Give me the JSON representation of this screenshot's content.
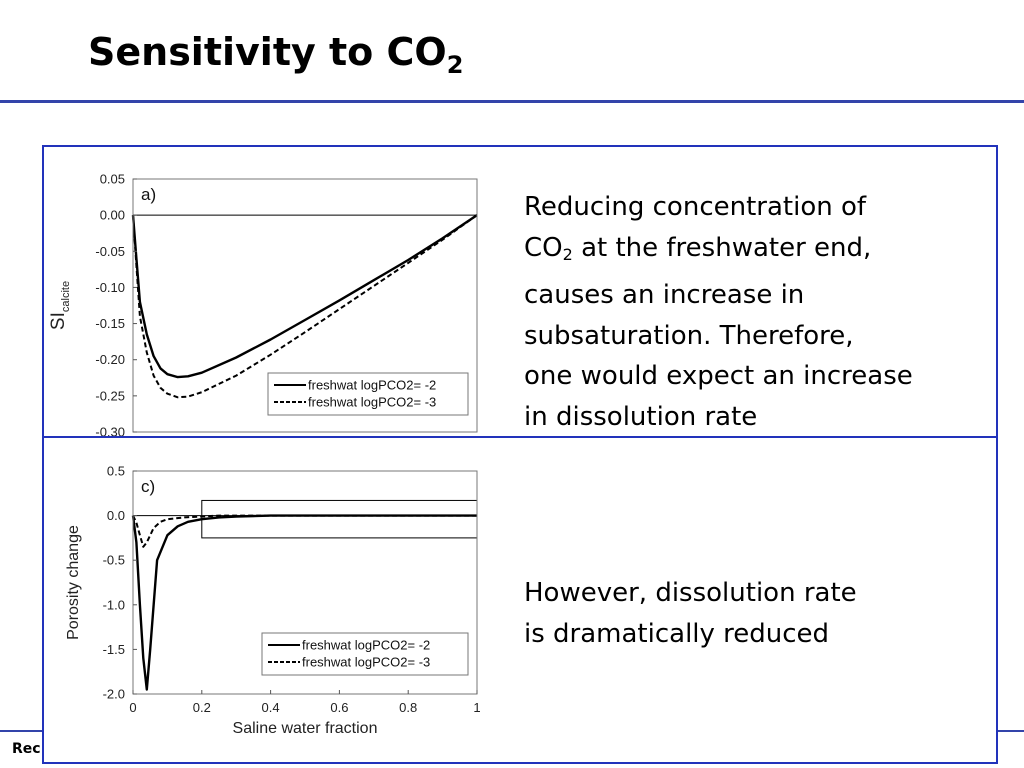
{
  "slide": {
    "title_main": "Sensitivity to CO",
    "title_sub": "2",
    "footer_fragment": "Rec"
  },
  "panel_top": {
    "text_line1": "Reducing concentration of",
    "text_co": "CO",
    "text_co_sub": "2",
    "text_line2_rest": " at the freshwater end,",
    "text_line3": "causes an increase in",
    "text_line4": "subsaturation. Therefore,",
    "text_line5": "one would expect an increase",
    "text_line6": "in dissolution rate"
  },
  "panel_bottom": {
    "text_line1": "However, dissolution rate",
    "text_line2": "is dramatically reduced"
  },
  "chart_data": [
    {
      "type": "line",
      "panel_label": "a)",
      "ylabel": "SI",
      "ylabel_sub": "calcite",
      "xlim": [
        0,
        1
      ],
      "ylim": [
        -0.3,
        0.05
      ],
      "yticks": [
        0.05,
        0.0,
        -0.05,
        -0.1,
        -0.15,
        -0.2,
        -0.25,
        -0.3
      ],
      "ytick_labels": [
        "0.05",
        "0.00",
        "-0.05",
        "-0.10",
        "-0.15",
        "-0.20",
        "-0.25",
        "-0.30"
      ],
      "legend_position": "bottom-right",
      "series": [
        {
          "name": "freshwat logPCO2= -2",
          "style": "solid",
          "x": [
            0,
            0.01,
            0.02,
            0.04,
            0.06,
            0.08,
            0.1,
            0.13,
            0.16,
            0.2,
            0.3,
            0.4,
            0.5,
            0.6,
            0.7,
            0.8,
            0.9,
            1.0
          ],
          "y": [
            0,
            -0.06,
            -0.12,
            -0.165,
            -0.195,
            -0.212,
            -0.22,
            -0.224,
            -0.223,
            -0.218,
            -0.197,
            -0.172,
            -0.145,
            -0.118,
            -0.09,
            -0.062,
            -0.032,
            0
          ]
        },
        {
          "name": "freshwat logPCO2= -3",
          "style": "dashed",
          "x": [
            0,
            0.01,
            0.02,
            0.04,
            0.06,
            0.08,
            0.1,
            0.13,
            0.16,
            0.2,
            0.3,
            0.4,
            0.5,
            0.6,
            0.7,
            0.8,
            0.9,
            1.0
          ],
          "y": [
            0,
            -0.07,
            -0.14,
            -0.19,
            -0.222,
            -0.239,
            -0.247,
            -0.252,
            -0.251,
            -0.245,
            -0.222,
            -0.193,
            -0.162,
            -0.13,
            -0.098,
            -0.066,
            -0.034,
            0
          ]
        }
      ]
    },
    {
      "type": "line",
      "panel_label": "c)",
      "ylabel": "Porosity change",
      "xlabel": "Saline water fraction",
      "xlim": [
        0,
        1
      ],
      "ylim": [
        -2.0,
        0.5
      ],
      "xticks": [
        0,
        0.2,
        0.4,
        0.6,
        0.8,
        1
      ],
      "xtick_labels": [
        "0",
        "0.2",
        "0.4",
        "0.6",
        "0.8",
        "1"
      ],
      "yticks": [
        0.5,
        0.0,
        -0.5,
        -1.0,
        -1.5,
        -2.0
      ],
      "ytick_labels": [
        "0.5",
        "0.0",
        "-0.5",
        "-1.0",
        "-1.5",
        "-2.0"
      ],
      "legend_position": "bottom-right",
      "inset_box": {
        "x0": 0.2,
        "x1": 1.0,
        "y0": -0.25,
        "y1": 0.17
      },
      "series": [
        {
          "name": "freshwat logPCO2= -2",
          "style": "solid",
          "x": [
            0,
            0.01,
            0.02,
            0.03,
            0.04,
            0.05,
            0.07,
            0.1,
            0.13,
            0.16,
            0.2,
            0.25,
            0.3,
            0.4,
            0.6,
            0.8,
            1.0
          ],
          "y": [
            0,
            -0.3,
            -1.0,
            -1.6,
            -1.95,
            -1.5,
            -0.5,
            -0.22,
            -0.12,
            -0.07,
            -0.04,
            -0.02,
            -0.01,
            0,
            0,
            0,
            0
          ]
        },
        {
          "name": "freshwat logPCO2= -3",
          "style": "dashed",
          "x": [
            0,
            0.01,
            0.02,
            0.03,
            0.04,
            0.06,
            0.08,
            0.1,
            0.15,
            0.2,
            0.25,
            0.3,
            0.4,
            0.6,
            0.8,
            1.0
          ],
          "y": [
            0,
            -0.08,
            -0.22,
            -0.35,
            -0.3,
            -0.14,
            -0.07,
            -0.04,
            -0.02,
            -0.01,
            0,
            0,
            0,
            0,
            0,
            0
          ]
        }
      ]
    }
  ]
}
